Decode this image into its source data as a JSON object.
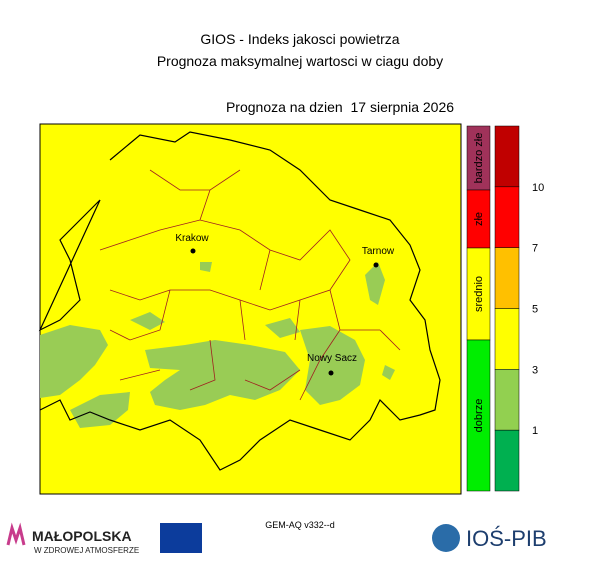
{
  "header": {
    "title": "GIOS - Indeks jakosci powietrza",
    "subtitle": "Prognoza maksymalnej wartosci w ciagu doby",
    "date": "Prognoza na dzien  17 sierpnia 2026"
  },
  "map": {
    "background": "#ffff00",
    "cities": [
      {
        "label": "Krakow"
      },
      {
        "label": "Tarnow"
      },
      {
        "label": "Nowy Sacz"
      }
    ]
  },
  "legend": {
    "categories": [
      {
        "label": "bardzo złe",
        "color": "#a0325a"
      },
      {
        "label": "złe",
        "color": "#ff0000"
      },
      {
        "label": "srednio",
        "color": "#ffff00"
      },
      {
        "label": "dobrze",
        "color": "#00ee00"
      }
    ],
    "scale_colors": [
      "#c00000",
      "#ff0000",
      "#ffc000",
      "#ffff00",
      "#92d050",
      "#00b050"
    ],
    "scale_labels": [
      10,
      7,
      5,
      3,
      1
    ]
  },
  "footer": {
    "logo_left": "MAŁOPOLSKA",
    "logo_left_sub": "W ZDROWEJ ATMOSFERZE",
    "model": "GEM-AQ v332--d",
    "logo_right": "IOŚ-PIB"
  }
}
